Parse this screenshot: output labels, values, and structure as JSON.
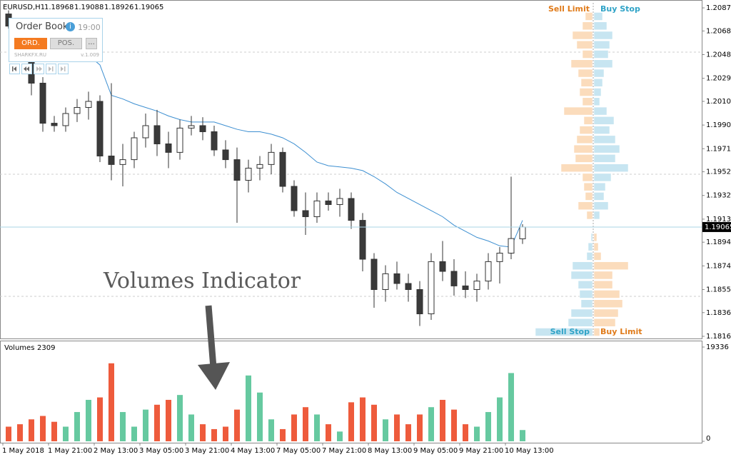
{
  "chart_data": {
    "type": "candlestick",
    "symbol": "EURUSD,H1",
    "categories": [
      "1 May 2018",
      null,
      null,
      null,
      "1 May 21:00",
      null,
      null,
      null,
      "2 May 13:00",
      null,
      null,
      null,
      "3 May 05:00",
      null,
      null,
      null,
      "3 May 21:00",
      null,
      null,
      null,
      "4 May 13:00",
      null,
      null,
      null,
      "7 May 05:00",
      null,
      null,
      null,
      "7 May 21:00",
      null,
      null,
      null,
      "8 May 13:00",
      null,
      null,
      null,
      "9 May 05:00",
      null,
      null,
      null,
      "9 May 21:00",
      null,
      null,
      null,
      "10 May 13:00",
      null
    ],
    "open": [
      1.2082,
      1.2072,
      1.205,
      1.2025,
      1.1992,
      1.199,
      1.2,
      1.2005,
      1.201,
      1.1965,
      1.1958,
      1.1962,
      1.198,
      1.199,
      1.1975,
      1.1968,
      1.1988,
      1.199,
      1.1985,
      1.197,
      1.1962,
      1.1945,
      1.1955,
      1.1958,
      1.1968,
      1.194,
      1.192,
      1.1915,
      1.1928,
      1.1925,
      1.193,
      1.1912,
      1.188,
      1.1855,
      1.1868,
      1.186,
      1.1855,
      1.1835,
      1.1878,
      1.187,
      1.1858,
      1.1855,
      1.1862,
      1.1878,
      1.1885,
      1.18968
    ],
    "high": [
      1.2085,
      1.2078,
      1.2055,
      1.203,
      1.1998,
      1.2005,
      1.2012,
      1.2018,
      1.2015,
      1.2025,
      1.1975,
      1.1985,
      1.2,
      1.2003,
      1.1985,
      1.1995,
      1.1998,
      1.1997,
      1.199,
      1.1978,
      1.1972,
      1.1962,
      1.1965,
      1.1975,
      1.1972,
      1.1945,
      1.1935,
      1.1935,
      1.1935,
      1.1938,
      1.1935,
      1.1918,
      1.1885,
      1.1875,
      1.1878,
      1.1868,
      1.1862,
      1.1885,
      1.1895,
      1.188,
      1.187,
      1.1868,
      1.1885,
      1.189,
      1.1948,
      1.19088
    ],
    "low": [
      1.207,
      1.2045,
      1.2015,
      1.1985,
      1.1985,
      1.1985,
      1.1993,
      1.1995,
      1.196,
      1.1945,
      1.194,
      1.1955,
      1.1972,
      1.1965,
      1.1955,
      1.1962,
      1.1982,
      1.1978,
      1.1965,
      1.1955,
      1.191,
      1.1935,
      1.1945,
      1.195,
      1.1935,
      1.1915,
      1.19,
      1.191,
      1.192,
      1.1915,
      1.1905,
      1.187,
      1.184,
      1.1845,
      1.1855,
      1.1845,
      1.1825,
      1.183,
      1.1862,
      1.185,
      1.1848,
      1.1845,
      1.1855,
      1.186,
      1.188,
      1.18926
    ],
    "close": [
      1.2072,
      1.205,
      1.2025,
      1.1992,
      1.199,
      1.2,
      1.2005,
      1.201,
      1.1965,
      1.1958,
      1.1962,
      1.198,
      1.199,
      1.1975,
      1.1968,
      1.1988,
      1.199,
      1.1985,
      1.197,
      1.1962,
      1.1945,
      1.1955,
      1.1958,
      1.1968,
      1.194,
      1.192,
      1.1915,
      1.1928,
      1.1925,
      1.193,
      1.1912,
      1.188,
      1.1855,
      1.1868,
      1.186,
      1.1855,
      1.1835,
      1.1878,
      1.187,
      1.1858,
      1.1855,
      1.1862,
      1.1878,
      1.1885,
      1.1897,
      1.19065
    ],
    "up_color": "#ffffff",
    "down_color": "#3a3a3a",
    "ylim": [
      1.18153,
      1.20935
    ],
    "yticks": [
      {
        "value": 1.2087,
        "label": "1.20870"
      },
      {
        "value": 1.2068,
        "label": "1.20680"
      },
      1.20485,
      {
        "value": 1.2029,
        "label": "1.20290"
      },
      {
        "value": 1.201,
        "label": "1.20100"
      },
      1.19905,
      {
        "value": 1.1971,
        "label": "1.19710"
      },
      {
        "value": 1.1952,
        "label": "1.19520"
      },
      1.19325,
      {
        "value": 1.1913,
        "label": "1.19130"
      },
      {
        "value": 1.1894,
        "label": "1.18940"
      },
      1.18745,
      {
        "value": 1.1855,
        "label": "1.18550"
      },
      {
        "value": 1.1836,
        "label": "1.18360"
      },
      1.18165
    ],
    "ma": {
      "color": "#3d8fd1",
      "values": [
        null,
        null,
        null,
        null,
        null,
        null,
        null,
        1.2048,
        1.204,
        1.2015,
        1.2012,
        1.2008,
        1.2005,
        1.2002,
        1.1998,
        1.1995,
        1.1993,
        1.1993,
        1.1993,
        1.199,
        1.1987,
        1.1985,
        1.1985,
        1.1983,
        1.198,
        1.1975,
        1.1968,
        1.196,
        1.1957,
        1.1956,
        1.1955,
        1.1953,
        1.1948,
        1.1942,
        1.1935,
        1.193,
        1.1925,
        1.192,
        1.1915,
        1.1908,
        1.1903,
        1.1898,
        1.1895,
        1.1891,
        1.189,
        1.1912
      ]
    },
    "order_book": {
      "limit_color": "#fbdcbc",
      "stop_color": "#c7e5f1",
      "upper_labels": [
        "Sell Limit",
        "Buy Stop"
      ],
      "lower_labels": [
        "Sell Stop",
        "Buy Limit"
      ],
      "upper_prices": [
        1.208,
        1.20722,
        1.20644,
        1.20566,
        1.20488,
        1.2041,
        1.20332,
        1.20254,
        1.20176,
        1.20098,
        1.2002,
        1.19942,
        1.19864,
        1.19786,
        1.19708,
        1.1963,
        1.19552,
        1.19474,
        1.19396,
        1.19318,
        1.1924,
        1.19162
      ],
      "sell_limit": [
        10,
        14,
        28,
        22,
        14,
        30,
        20,
        16,
        18,
        14,
        40,
        12,
        18,
        22,
        26,
        24,
        44,
        14,
        12,
        10,
        20,
        8
      ],
      "buy_stop": [
        12,
        18,
        26,
        22,
        20,
        26,
        14,
        12,
        10,
        8,
        18,
        28,
        22,
        30,
        36,
        30,
        48,
        24,
        16,
        14,
        20,
        8
      ],
      "lower_prices": [
        1.1898,
        1.18902,
        1.18824,
        1.18746,
        1.18668,
        1.1859,
        1.18512,
        1.18434,
        1.18356,
        1.18278,
        1.182
      ],
      "sell_stop": [
        2,
        6,
        8,
        28,
        30,
        20,
        18,
        16,
        30,
        34,
        80
      ],
      "buy_limit": [
        4,
        6,
        10,
        48,
        26,
        26,
        36,
        40,
        34,
        30,
        8
      ]
    },
    "volumes": {
      "type": "bar",
      "label": "Volumes",
      "values": [
        3000,
        3500,
        4500,
        5200,
        4000,
        3000,
        6000,
        8500,
        9000,
        16000,
        6000,
        3000,
        6500,
        7500,
        8500,
        9500,
        5500,
        3500,
        2500,
        3000,
        6500,
        13500,
        10000,
        4500,
        2500,
        5500,
        7000,
        5500,
        3500,
        2000,
        8000,
        9000,
        7500,
        4500,
        5500,
        3500,
        5500,
        7000,
        8500,
        6500,
        3500,
        3000,
        6000,
        9000,
        14000,
        2309
      ],
      "up_color": "#66c9a0",
      "down_color": "#ee5b3c",
      "ylim": [
        0,
        19336
      ],
      "yticks": [
        19336,
        0
      ]
    }
  },
  "widget": {
    "title": "Order Book",
    "info": "i",
    "time": "19:00",
    "buttons": [
      "ORD.",
      "POS.",
      "..."
    ],
    "brand": "SHARKFX.RU",
    "version": "v.1.009"
  },
  "annotation": "Volumes Indicator"
}
